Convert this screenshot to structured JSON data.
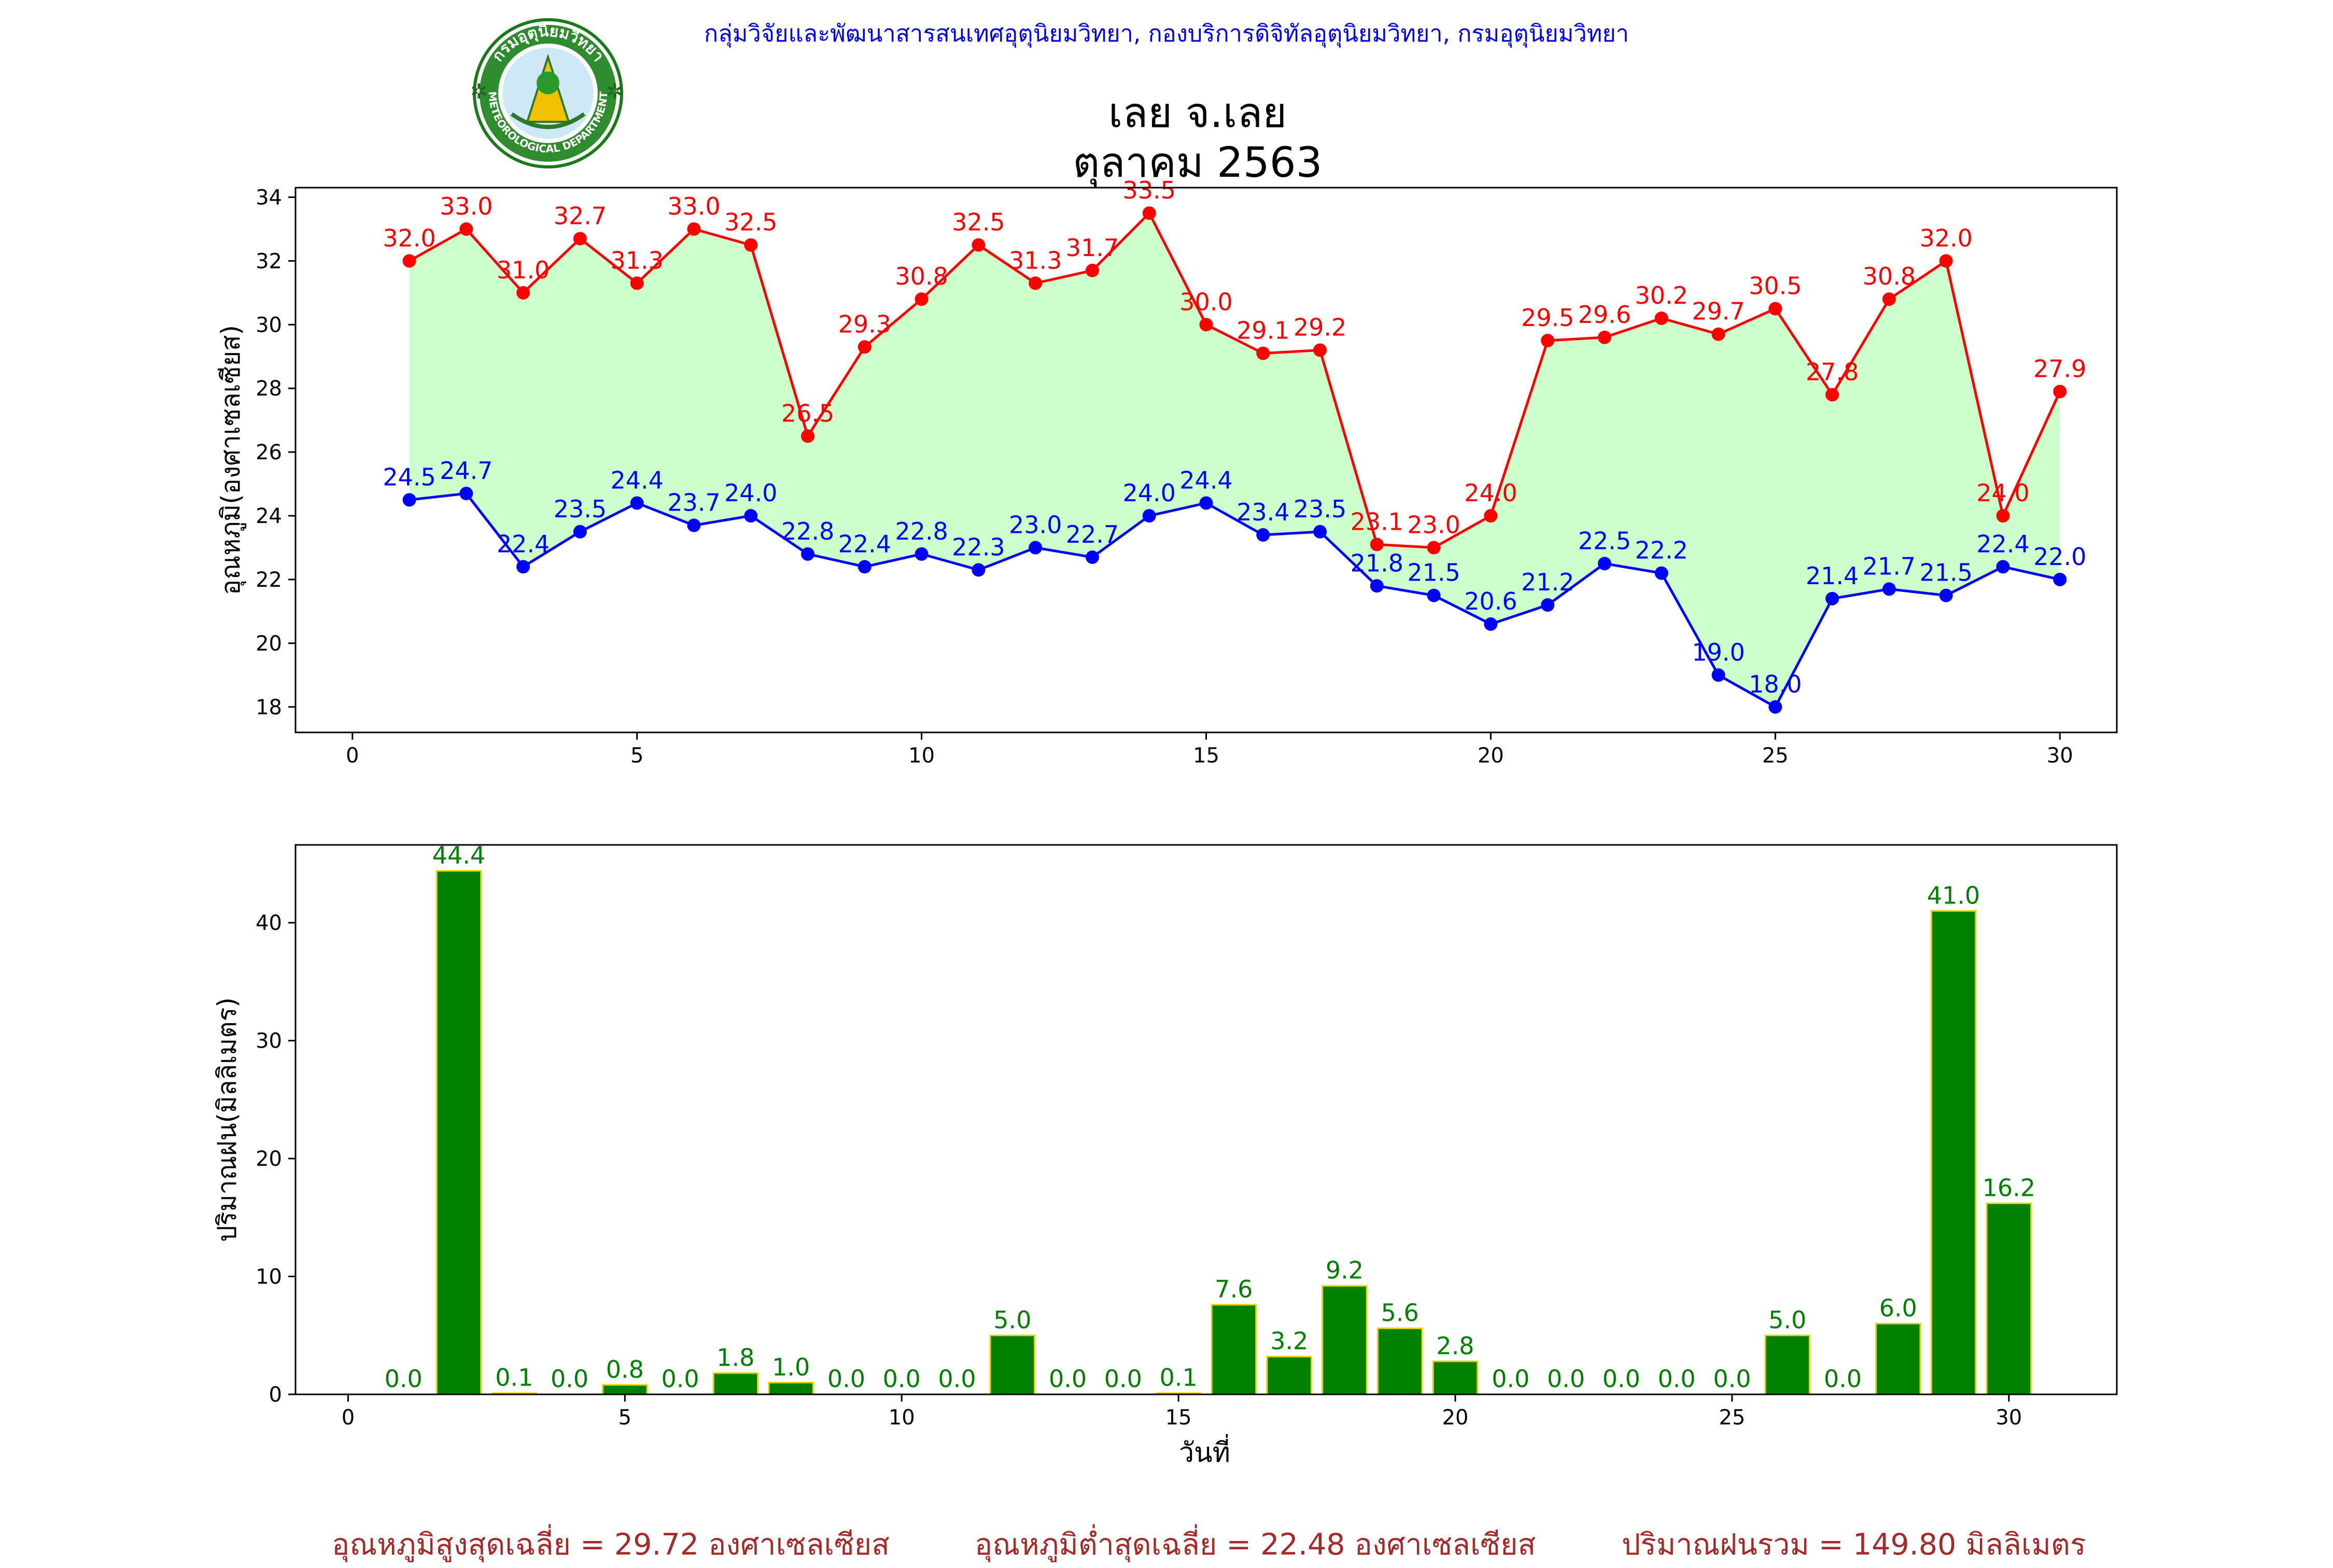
{
  "header": {
    "credit": "กลุ่มวิจัยและพัฒนาสารสนเทศอุตุนิยมวิทยา, กองบริการดิจิทัลอุตุนิยมวิทยา, กรมอุตุนิยมวิทยา",
    "title_line1": "เลย จ.เลย",
    "title_line2": "ตุลาคม 2563",
    "logo_text": "กรมอุตุนิยมวิทยา",
    "logo_subtext": "METEOROLOGICAL DEPARTMENT"
  },
  "footer": {
    "avg_max": "อุณหภูมิสูงสุดเฉลี่ย = 29.72 องศาเซลเซียส",
    "avg_min": "อุณหภูมิต่ำสุดเฉลี่ย = 22.48 องศาเซลเซียส",
    "total_rain": "ปริมาณฝนรวม = 149.80 มิลลิเมตร"
  },
  "colors": {
    "max_line": "#ff0000",
    "min_line": "#0000ff",
    "fill": "#ccffcc",
    "bar": "#008000",
    "bar_edge": "#e6d200",
    "bar_label": "#008000",
    "footer": "#a52a2a"
  },
  "chart_data": [
    {
      "type": "line",
      "ylabel": "อุณหภูมิ(องศาเซลเซียส)",
      "xlim": [
        -1,
        31
      ],
      "ylim": [
        17.2,
        34.3
      ],
      "xticks": [
        0,
        5,
        10,
        15,
        20,
        25,
        30
      ],
      "yticks": [
        18,
        20,
        22,
        24,
        26,
        28,
        30,
        32,
        34
      ],
      "x": [
        1,
        2,
        3,
        4,
        5,
        6,
        7,
        8,
        9,
        10,
        11,
        12,
        13,
        14,
        15,
        16,
        17,
        18,
        19,
        20,
        21,
        22,
        23,
        24,
        25,
        26,
        27,
        28,
        29,
        30
      ],
      "series": [
        {
          "key": "max",
          "values": [
            32.0,
            33.0,
            31.0,
            32.7,
            31.3,
            33.0,
            32.5,
            26.5,
            29.3,
            30.8,
            32.5,
            31.3,
            31.7,
            33.5,
            30.0,
            29.1,
            29.2,
            23.1,
            23.0,
            24.0,
            29.5,
            29.6,
            30.2,
            29.7,
            30.5,
            27.8,
            30.8,
            32.0,
            24.0,
            27.9
          ]
        },
        {
          "key": "min",
          "values": [
            24.5,
            24.7,
            22.4,
            23.5,
            24.4,
            23.7,
            24.0,
            22.8,
            22.4,
            22.8,
            22.3,
            23.0,
            22.7,
            24.0,
            24.4,
            23.4,
            23.5,
            21.8,
            21.5,
            20.6,
            21.2,
            22.5,
            22.2,
            19.0,
            18.0,
            21.4,
            21.7,
            21.5,
            22.4,
            22.0
          ]
        }
      ]
    },
    {
      "type": "bar",
      "xlabel": "วันที่",
      "ylabel": "ปริมาณฝน(มิลลิเมตร)",
      "xlim": [
        -0.95,
        31.95
      ],
      "ylim": [
        0,
        46.6
      ],
      "xticks": [
        0,
        5,
        10,
        15,
        20,
        25,
        30
      ],
      "yticks": [
        0,
        10,
        20,
        30,
        40
      ],
      "x": [
        1,
        2,
        3,
        4,
        5,
        6,
        7,
        8,
        9,
        10,
        11,
        12,
        13,
        14,
        15,
        16,
        17,
        18,
        19,
        20,
        21,
        22,
        23,
        24,
        25,
        26,
        27,
        28,
        29,
        30
      ],
      "values": [
        0.0,
        44.4,
        0.1,
        0.0,
        0.8,
        0.0,
        1.8,
        1.0,
        0.0,
        0.0,
        0.0,
        5.0,
        0.0,
        0.0,
        0.1,
        7.6,
        3.2,
        9.2,
        5.6,
        2.8,
        0.0,
        0.0,
        0.0,
        0.0,
        0.0,
        5.0,
        0.0,
        6.0,
        41.0,
        16.2
      ]
    }
  ]
}
